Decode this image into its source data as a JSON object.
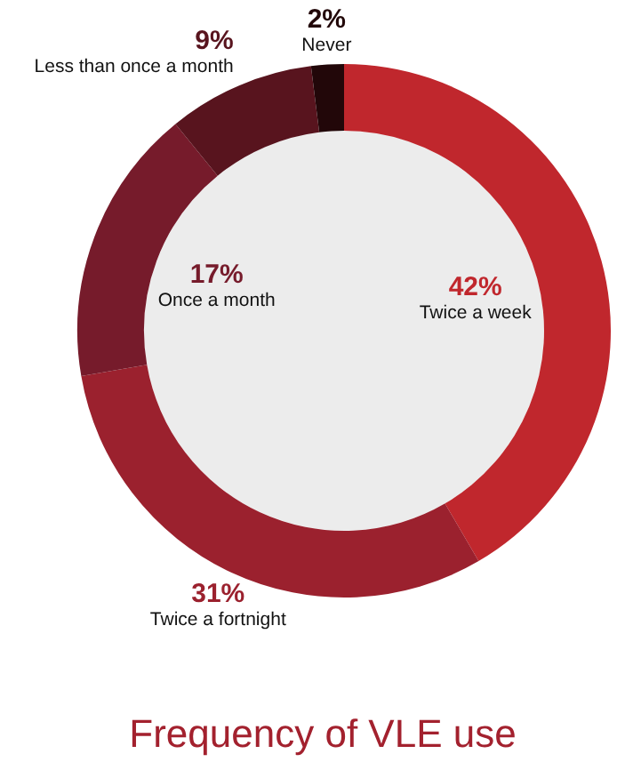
{
  "chart_data": {
    "type": "donut",
    "title": "Frequency of VLE use",
    "categories": [
      "Twice a week",
      "Twice a fortnight",
      "Once a month",
      "Less than once a month",
      "Never"
    ],
    "values": [
      42,
      31,
      17,
      9,
      2
    ],
    "colors": [
      "#c0272d",
      "#9b212e",
      "#761b2b",
      "#58141e",
      "#220709"
    ],
    "value_labels": [
      "42%",
      "31%",
      "17%",
      "9%",
      "2%"
    ],
    "legend": false
  }
}
